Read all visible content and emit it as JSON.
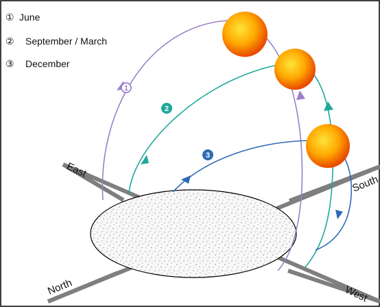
{
  "legend": {
    "items": [
      {
        "marker": "①",
        "label": "June"
      },
      {
        "marker": "②",
        "label": "September / March"
      },
      {
        "marker": "③",
        "label": "December"
      }
    ]
  },
  "directions": {
    "east": "East",
    "north": "North",
    "south": "South",
    "west": "West"
  },
  "paths": [
    {
      "marker": "①",
      "color": "#9a80c8"
    },
    {
      "marker": "②",
      "color": "#1fa89a"
    },
    {
      "marker": "③",
      "color": "#2f6ab5"
    }
  ],
  "colors": {
    "sun_core": "#ffe43a",
    "sun_mid": "#ffa800",
    "sun_edge": "#e84a00",
    "axis": "#7f7f7f",
    "ground_fill": "#f8f8f8",
    "frame": "#000000"
  }
}
